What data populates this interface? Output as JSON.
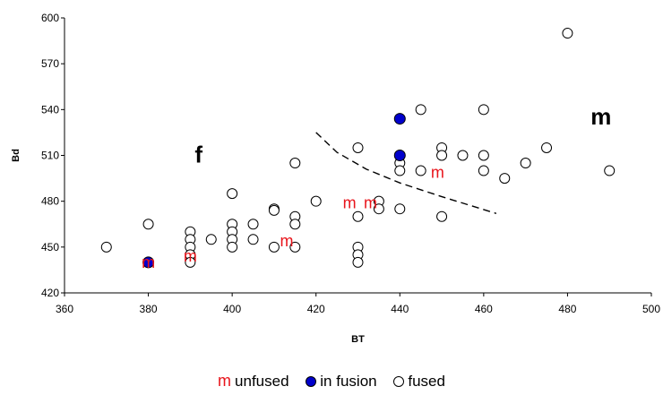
{
  "chart_data": {
    "type": "scatter",
    "xlabel": "BT",
    "ylabel": "Bd",
    "xlim": [
      360,
      500
    ],
    "ylim": [
      420,
      600
    ],
    "x_ticks": [
      "360",
      "380",
      "400",
      "420",
      "440",
      "460",
      "480",
      "500"
    ],
    "y_ticks": [
      "420",
      "450",
      "480",
      "510",
      "540",
      "570",
      "600"
    ],
    "grid": false,
    "legend_position": "bottom",
    "series": [
      {
        "name": "unfused",
        "marker": "m",
        "color": "#e8141b",
        "points": [
          [
            380,
            440
          ],
          [
            390,
            444
          ],
          [
            413,
            454
          ],
          [
            428,
            479
          ],
          [
            433,
            479
          ],
          [
            449,
            499
          ]
        ]
      },
      {
        "name": "in fusion",
        "marker": "filled-circle",
        "color": "#0000cc",
        "points": [
          [
            380,
            440
          ],
          [
            440,
            534
          ],
          [
            440,
            510
          ]
        ]
      },
      {
        "name": "fused",
        "marker": "open-circle",
        "color": "#000000",
        "points": [
          [
            370,
            450
          ],
          [
            380,
            465
          ],
          [
            380,
            440
          ],
          [
            390,
            460
          ],
          [
            390,
            455
          ],
          [
            390,
            450
          ],
          [
            390,
            445
          ],
          [
            390,
            440
          ],
          [
            395,
            455
          ],
          [
            400,
            485
          ],
          [
            400,
            465
          ],
          [
            400,
            460
          ],
          [
            400,
            455
          ],
          [
            400,
            450
          ],
          [
            405,
            465
          ],
          [
            405,
            455
          ],
          [
            410,
            475
          ],
          [
            410,
            474
          ],
          [
            410,
            450
          ],
          [
            415,
            505
          ],
          [
            415,
            470
          ],
          [
            415,
            465
          ],
          [
            415,
            450
          ],
          [
            420,
            480
          ],
          [
            430,
            515
          ],
          [
            430,
            470
          ],
          [
            430,
            450
          ],
          [
            430,
            445
          ],
          [
            430,
            440
          ],
          [
            435,
            480
          ],
          [
            435,
            475
          ],
          [
            440,
            510
          ],
          [
            440,
            505
          ],
          [
            440,
            500
          ],
          [
            440,
            475
          ],
          [
            445,
            540
          ],
          [
            445,
            500
          ],
          [
            450,
            515
          ],
          [
            450,
            510
          ],
          [
            450,
            470
          ],
          [
            455,
            510
          ],
          [
            460,
            540
          ],
          [
            460,
            510
          ],
          [
            460,
            500
          ],
          [
            465,
            495
          ],
          [
            470,
            505
          ],
          [
            475,
            515
          ],
          [
            480,
            590
          ],
          [
            490,
            500
          ]
        ]
      }
    ],
    "annotations": [
      {
        "text": "f",
        "x": 392,
        "y": 510
      },
      {
        "text": "m",
        "x": 488,
        "y": 535
      }
    ],
    "boundary_line": [
      [
        420,
        525
      ],
      [
        425,
        512
      ],
      [
        432,
        501
      ],
      [
        440,
        492
      ],
      [
        450,
        483
      ],
      [
        463,
        472
      ]
    ]
  },
  "legend": {
    "unfused_symbol": "m",
    "unfused_label": "unfused",
    "in_fusion_label": "in fusion",
    "fused_label": "fused"
  }
}
